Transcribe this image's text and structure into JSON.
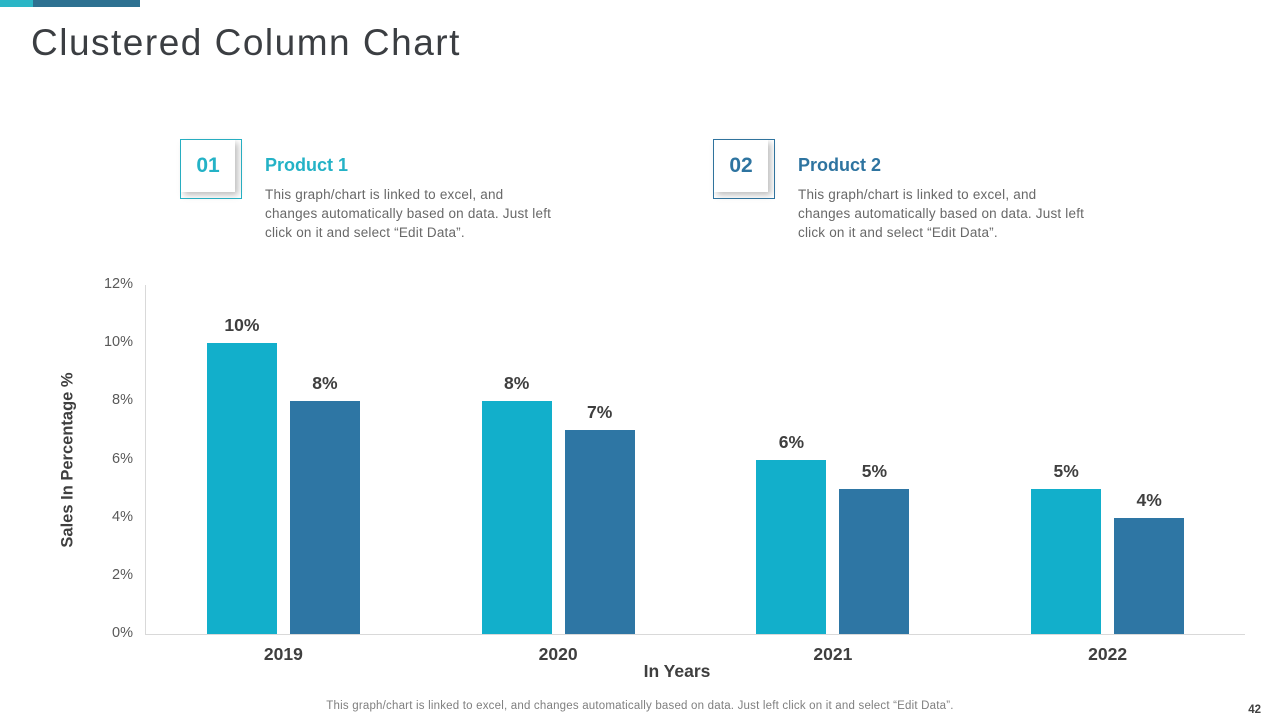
{
  "slide": {
    "title": "Clustered Column Chart",
    "page_number": "42",
    "footer_note": "This graph/chart is linked to excel, and changes automatically based on data. Just left click on it and select “Edit Data”.",
    "accent_colors": {
      "cyan": "#2bb6c6",
      "blue": "#2e7191"
    }
  },
  "callouts": [
    {
      "number": "01",
      "title": "Product 1",
      "accent": "#24b2c6",
      "description": "This graph/chart is linked to excel, and changes automatically based on data. Just left click on it and select “Edit Data”."
    },
    {
      "number": "02",
      "title": "Product 2",
      "accent": "#2e74a0",
      "description": "This graph/chart is linked to excel, and changes automatically based on data. Just left click on it and select “Edit Data”."
    }
  ],
  "chart_data": {
    "type": "bar",
    "title": "",
    "categories": [
      "2019",
      "2020",
      "2021",
      "2022"
    ],
    "series": [
      {
        "name": "Product 1",
        "color": "#12afcb",
        "values": [
          10,
          8,
          6,
          5
        ]
      },
      {
        "name": "Product 2",
        "color": "#2e76a4",
        "values": [
          8,
          7,
          5,
          4
        ]
      }
    ],
    "xlabel": "In Years",
    "ylabel": "Sales In Percentage %",
    "ylim": [
      0,
      12
    ],
    "ytick_step": 2,
    "tick_suffix": "%",
    "data_label_suffix": "%",
    "grid": false,
    "legend": "none"
  }
}
